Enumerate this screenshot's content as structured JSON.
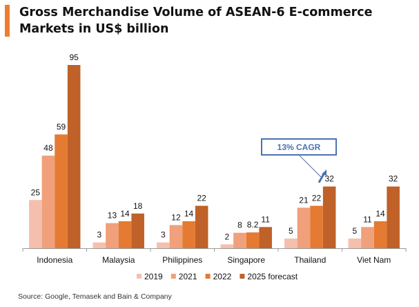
{
  "chart_data": {
    "type": "bar",
    "title": "Gross Merchandise Volume of ASEAN-6 E-commerce Markets in US$ billion",
    "categories": [
      "Indonesia",
      "Malaysia",
      "Philippines",
      "Singapore",
      "Thailand",
      "Viet Nam"
    ],
    "series": [
      {
        "name": "2019",
        "values": [
          25,
          3,
          3,
          2,
          5,
          5
        ],
        "labels": [
          "25",
          "3",
          "3",
          "2",
          "5",
          "5"
        ],
        "color": "#f4c0ad"
      },
      {
        "name": "2021",
        "values": [
          48,
          13,
          12,
          8,
          21,
          11
        ],
        "labels": [
          "48",
          "13",
          "12",
          "8",
          "21",
          "11"
        ],
        "color": "#f0a07a"
      },
      {
        "name": "2022",
        "values": [
          59,
          14,
          14,
          8.2,
          22,
          14
        ],
        "labels": [
          "59",
          "14",
          "14",
          "8.2",
          "22",
          "14"
        ],
        "color": "#e57a33"
      },
      {
        "name": "2025 forecast",
        "values": [
          95,
          18,
          22,
          11,
          32,
          32
        ],
        "labels": [
          "95",
          "18",
          "22",
          "11",
          "32",
          "32"
        ],
        "color": "#bf6129"
      }
    ],
    "ylim": [
      0,
      95
    ],
    "grid": false,
    "legend": "bottom",
    "annotation": {
      "text": "13% CAGR",
      "color": "#4a72b0"
    },
    "source": "Source: Google, Temasek and Bain & Company"
  }
}
